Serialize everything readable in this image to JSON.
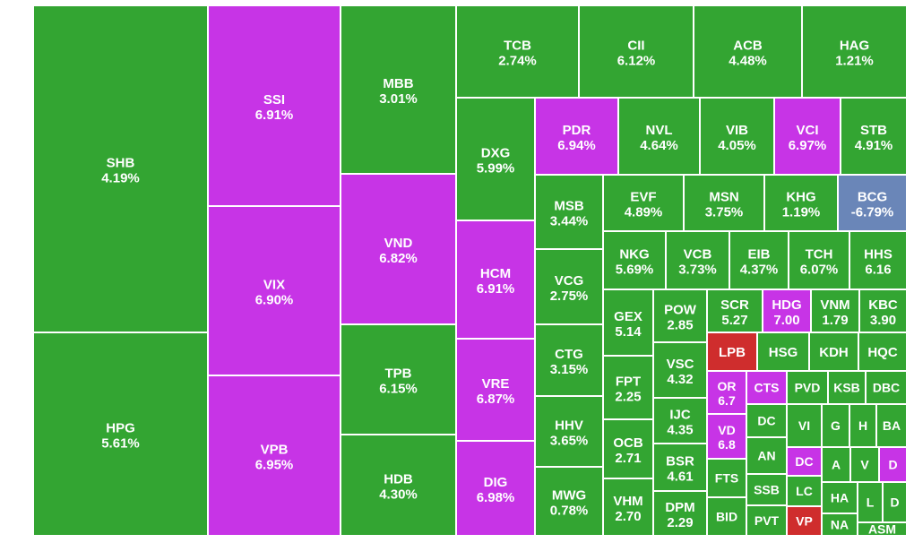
{
  "chart_data": {
    "type": "treemap",
    "colors": {
      "up": "#33a532",
      "ceiling": "#c734e6",
      "down": "#cf2d2d",
      "ref": "#6a86b8",
      "border": "#ffffff"
    },
    "tiles": [
      {
        "ticker": "SHB",
        "change": "4.19%",
        "status": "up"
      },
      {
        "ticker": "HPG",
        "change": "5.61%",
        "status": "up"
      },
      {
        "ticker": "SSI",
        "change": "6.91%",
        "status": "ceiling"
      },
      {
        "ticker": "VIX",
        "change": "6.90%",
        "status": "ceiling"
      },
      {
        "ticker": "VPB",
        "change": "6.95%",
        "status": "ceiling"
      },
      {
        "ticker": "MBB",
        "change": "3.01%",
        "status": "up"
      },
      {
        "ticker": "VND",
        "change": "6.82%",
        "status": "ceiling"
      },
      {
        "ticker": "TPB",
        "change": "6.15%",
        "status": "up"
      },
      {
        "ticker": "HDB",
        "change": "4.30%",
        "status": "up"
      },
      {
        "ticker": "TCB",
        "change": "2.74%",
        "status": "up"
      },
      {
        "ticker": "CII",
        "change": "6.12%",
        "status": "up"
      },
      {
        "ticker": "ACB",
        "change": "4.48%",
        "status": "up"
      },
      {
        "ticker": "HAG",
        "change": "1.21%",
        "status": "up"
      },
      {
        "ticker": "DXG",
        "change": "5.99%",
        "status": "up"
      },
      {
        "ticker": "PDR",
        "change": "6.94%",
        "status": "ceiling"
      },
      {
        "ticker": "NVL",
        "change": "4.64%",
        "status": "up"
      },
      {
        "ticker": "VIB",
        "change": "4.05%",
        "status": "up"
      },
      {
        "ticker": "VCI",
        "change": "6.97%",
        "status": "ceiling"
      },
      {
        "ticker": "STB",
        "change": "4.91%",
        "status": "up"
      },
      {
        "ticker": "MSB",
        "change": "3.44%",
        "status": "up"
      },
      {
        "ticker": "EVF",
        "change": "4.89%",
        "status": "up"
      },
      {
        "ticker": "MSN",
        "change": "3.75%",
        "status": "up"
      },
      {
        "ticker": "KHG",
        "change": "1.19%",
        "status": "up"
      },
      {
        "ticker": "BCG",
        "change": "-6.79%",
        "status": "ref"
      },
      {
        "ticker": "HCM",
        "change": "6.91%",
        "status": "ceiling"
      },
      {
        "ticker": "VCG",
        "change": "2.75%",
        "status": "up"
      },
      {
        "ticker": "NKG",
        "change": "5.69%",
        "status": "up"
      },
      {
        "ticker": "VCB",
        "change": "3.73%",
        "status": "up"
      },
      {
        "ticker": "EIB",
        "change": "4.37%",
        "status": "up"
      },
      {
        "ticker": "TCH",
        "change": "6.07%",
        "status": "up"
      },
      {
        "ticker": "HHS",
        "change": "6.16",
        "status": "up"
      },
      {
        "ticker": "GEX",
        "change": "5.14",
        "status": "up"
      },
      {
        "ticker": "POW",
        "change": "2.85",
        "status": "up"
      },
      {
        "ticker": "SCR",
        "change": "5.27",
        "status": "up"
      },
      {
        "ticker": "HDG",
        "change": "7.00",
        "status": "ceiling"
      },
      {
        "ticker": "VNM",
        "change": "1.79",
        "status": "up"
      },
      {
        "ticker": "KBC",
        "change": "3.90",
        "status": "up"
      },
      {
        "ticker": "LPB",
        "change": "",
        "status": "down"
      },
      {
        "ticker": "HSG",
        "change": "",
        "status": "up"
      },
      {
        "ticker": "KDH",
        "change": "",
        "status": "up"
      },
      {
        "ticker": "HQC",
        "change": "",
        "status": "up"
      },
      {
        "ticker": "VRE",
        "change": "6.87%",
        "status": "ceiling"
      },
      {
        "ticker": "CTG",
        "change": "3.15%",
        "status": "up"
      },
      {
        "ticker": "FPT",
        "change": "2.25",
        "status": "up"
      },
      {
        "ticker": "VSC",
        "change": "4.32",
        "status": "up"
      },
      {
        "ticker": "OR",
        "change": "6.7",
        "status": "ceiling"
      },
      {
        "ticker": "CTS",
        "change": "",
        "status": "ceiling"
      },
      {
        "ticker": "PVD",
        "change": "",
        "status": "up"
      },
      {
        "ticker": "KSB",
        "change": "",
        "status": "up"
      },
      {
        "ticker": "DBC",
        "change": "",
        "status": "up"
      },
      {
        "ticker": "HHV",
        "change": "3.65%",
        "status": "up"
      },
      {
        "ticker": "IJC",
        "change": "4.35",
        "status": "up"
      },
      {
        "ticker": "VD",
        "change": "6.8",
        "status": "ceiling"
      },
      {
        "ticker": "DC",
        "change": "",
        "status": "up"
      },
      {
        "ticker": "VI",
        "change": "",
        "status": "up"
      },
      {
        "ticker": "G",
        "change": "",
        "status": "up"
      },
      {
        "ticker": "H",
        "change": "",
        "status": "up"
      },
      {
        "ticker": "BA",
        "change": "",
        "status": "up"
      },
      {
        "ticker": "DIG",
        "change": "6.98%",
        "status": "ceiling"
      },
      {
        "ticker": "OCB",
        "change": "2.71",
        "status": "up"
      },
      {
        "ticker": "AN",
        "change": "",
        "status": "up"
      },
      {
        "ticker": "DC",
        "change": "",
        "status": "ceiling"
      },
      {
        "ticker": "A",
        "change": "",
        "status": "up"
      },
      {
        "ticker": "V",
        "change": "",
        "status": "up"
      },
      {
        "ticker": "D",
        "change": "",
        "status": "ceiling"
      },
      {
        "ticker": "BSR",
        "change": "4.61",
        "status": "up"
      },
      {
        "ticker": "FTS",
        "change": "",
        "status": "up"
      },
      {
        "ticker": "SSB",
        "change": "",
        "status": "up"
      },
      {
        "ticker": "LC",
        "change": "",
        "status": "up"
      },
      {
        "ticker": "HA",
        "change": "",
        "status": "up"
      },
      {
        "ticker": "L",
        "change": "",
        "status": "up"
      },
      {
        "ticker": "D",
        "change": "",
        "status": "up"
      },
      {
        "ticker": "MWG",
        "change": "0.78%",
        "status": "up"
      },
      {
        "ticker": "VHM",
        "change": "2.70",
        "status": "up"
      },
      {
        "ticker": "DPM",
        "change": "2.29",
        "status": "up"
      },
      {
        "ticker": "BID",
        "change": "",
        "status": "up"
      },
      {
        "ticker": "PVT",
        "change": "",
        "status": "up"
      },
      {
        "ticker": "VP",
        "change": "",
        "status": "down"
      },
      {
        "ticker": "NA",
        "change": "",
        "status": "up"
      },
      {
        "ticker": "ASM",
        "change": "",
        "status": "up"
      }
    ]
  }
}
